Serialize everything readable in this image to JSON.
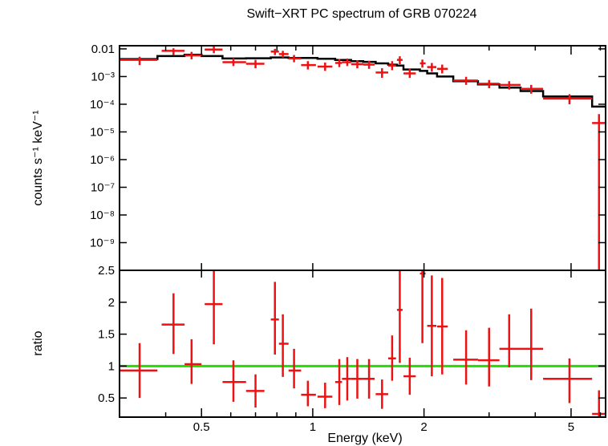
{
  "title": "Swift−XRT PC spectrum of GRB 070224",
  "chart_data": [
    {
      "type": "scatter",
      "panel": "spectrum",
      "ylabel": "counts s⁻¹ keV⁻¹",
      "xscale": "log",
      "yscale": "log",
      "xlim": [
        0.3,
        6.2
      ],
      "ylim": [
        1e-10,
        0.013
      ],
      "ytick_labels": [
        "0.01",
        "10⁻³",
        "10⁻⁴",
        "10⁻⁵",
        "10⁻⁶",
        "10⁻⁷",
        "10⁻⁸",
        "10⁻⁹"
      ],
      "ytick_values": [
        0.01,
        0.001,
        0.0001,
        1e-05,
        1e-06,
        1e-07,
        1e-08,
        1e-09
      ],
      "series": [
        {
          "name": "data",
          "color": "#ee1111",
          "points": [
            {
              "x": 0.34,
              "xlo": 0.3,
              "xhi": 0.38,
              "y": 0.004,
              "ylo": 0.0026,
              "yhi": 0.0052
            },
            {
              "x": 0.42,
              "xlo": 0.39,
              "xhi": 0.45,
              "y": 0.0085,
              "ylo": 0.006,
              "yhi": 0.0105
            },
            {
              "x": 0.47,
              "xlo": 0.45,
              "xhi": 0.5,
              "y": 0.0058,
              "ylo": 0.0042,
              "yhi": 0.0078
            },
            {
              "x": 0.54,
              "xlo": 0.51,
              "xhi": 0.57,
              "y": 0.0095,
              "ylo": 0.007,
              "yhi": 0.0125
            },
            {
              "x": 0.61,
              "xlo": 0.57,
              "xhi": 0.66,
              "y": 0.0033,
              "ylo": 0.0024,
              "yhi": 0.0046
            },
            {
              "x": 0.7,
              "xlo": 0.66,
              "xhi": 0.74,
              "y": 0.0029,
              "ylo": 0.002,
              "yhi": 0.004
            },
            {
              "x": 0.79,
              "xlo": 0.77,
              "xhi": 0.81,
              "y": 0.008,
              "ylo": 0.006,
              "yhi": 0.01
            },
            {
              "x": 0.83,
              "xlo": 0.81,
              "xhi": 0.86,
              "y": 0.0065,
              "ylo": 0.0048,
              "yhi": 0.0085
            },
            {
              "x": 0.89,
              "xlo": 0.86,
              "xhi": 0.93,
              "y": 0.0045,
              "ylo": 0.0033,
              "yhi": 0.006
            },
            {
              "x": 0.97,
              "xlo": 0.93,
              "xhi": 1.02,
              "y": 0.0026,
              "ylo": 0.0018,
              "yhi": 0.0036
            },
            {
              "x": 1.08,
              "xlo": 1.03,
              "xhi": 1.13,
              "y": 0.0023,
              "ylo": 0.0016,
              "yhi": 0.0032
            },
            {
              "x": 1.18,
              "xlo": 1.15,
              "xhi": 1.2,
              "y": 0.0031,
              "ylo": 0.0022,
              "yhi": 0.0043
            },
            {
              "x": 1.24,
              "xlo": 1.2,
              "xhi": 1.27,
              "y": 0.0033,
              "ylo": 0.0024,
              "yhi": 0.0045
            },
            {
              "x": 1.32,
              "xlo": 1.27,
              "xhi": 1.37,
              "y": 0.0028,
              "ylo": 0.002,
              "yhi": 0.0039
            },
            {
              "x": 1.42,
              "xlo": 1.37,
              "xhi": 1.47,
              "y": 0.0027,
              "ylo": 0.0019,
              "yhi": 0.0037
            },
            {
              "x": 1.54,
              "xlo": 1.48,
              "xhi": 1.6,
              "y": 0.0014,
              "ylo": 0.0009,
              "yhi": 0.002
            },
            {
              "x": 1.64,
              "xlo": 1.6,
              "xhi": 1.68,
              "y": 0.0025,
              "ylo": 0.0017,
              "yhi": 0.0036
            },
            {
              "x": 1.72,
              "xlo": 1.69,
              "xhi": 1.75,
              "y": 0.004,
              "ylo": 0.0028,
              "yhi": 0.0054
            },
            {
              "x": 1.83,
              "xlo": 1.76,
              "xhi": 1.9,
              "y": 0.0013,
              "ylo": 0.0009,
              "yhi": 0.0019
            },
            {
              "x": 1.98,
              "xlo": 1.95,
              "xhi": 2.02,
              "y": 0.003,
              "ylo": 0.0021,
              "yhi": 0.0041
            },
            {
              "x": 2.1,
              "xlo": 2.04,
              "xhi": 2.16,
              "y": 0.0022,
              "ylo": 0.0015,
              "yhi": 0.0031
            },
            {
              "x": 2.24,
              "xlo": 2.17,
              "xhi": 2.32,
              "y": 0.0019,
              "ylo": 0.0013,
              "yhi": 0.0027
            },
            {
              "x": 2.6,
              "xlo": 2.4,
              "xhi": 2.8,
              "y": 0.00072,
              "ylo": 0.0005,
              "yhi": 0.00098
            },
            {
              "x": 3.0,
              "xlo": 2.8,
              "xhi": 3.2,
              "y": 0.00055,
              "ylo": 0.00038,
              "yhi": 0.00075
            },
            {
              "x": 3.4,
              "xlo": 3.2,
              "xhi": 3.65,
              "y": 0.0005,
              "ylo": 0.00034,
              "yhi": 0.00068
            },
            {
              "x": 3.9,
              "xlo": 3.65,
              "xhi": 4.2,
              "y": 0.00036,
              "ylo": 0.00024,
              "yhi": 0.0005
            },
            {
              "x": 4.95,
              "xlo": 4.2,
              "xhi": 5.7,
              "y": 0.00016,
              "ylo": 0.0001,
              "yhi": 0.00023
            },
            {
              "x": 5.95,
              "xlo": 5.7,
              "xhi": 6.2,
              "y": 2.1e-05,
              "ylo": 1e-10,
              "yhi": 4.4e-05
            }
          ]
        },
        {
          "name": "model",
          "type": "step",
          "color": "#000000",
          "points": [
            {
              "xlo": 0.3,
              "xhi": 0.38,
              "y": 0.0043
            },
            {
              "xlo": 0.38,
              "xhi": 0.45,
              "y": 0.0055
            },
            {
              "xlo": 0.45,
              "xhi": 0.5,
              "y": 0.0061
            },
            {
              "xlo": 0.5,
              "xhi": 0.57,
              "y": 0.0055
            },
            {
              "xlo": 0.57,
              "xhi": 0.66,
              "y": 0.0045
            },
            {
              "xlo": 0.66,
              "xhi": 0.77,
              "y": 0.0046
            },
            {
              "xlo": 0.77,
              "xhi": 0.86,
              "y": 0.0049
            },
            {
              "xlo": 0.86,
              "xhi": 0.93,
              "y": 0.0047
            },
            {
              "xlo": 0.93,
              "xhi": 1.03,
              "y": 0.0047
            },
            {
              "xlo": 1.03,
              "xhi": 1.15,
              "y": 0.0044
            },
            {
              "xlo": 1.15,
              "xhi": 1.27,
              "y": 0.004
            },
            {
              "xlo": 1.27,
              "xhi": 1.37,
              "y": 0.0036
            },
            {
              "xlo": 1.37,
              "xhi": 1.48,
              "y": 0.0034
            },
            {
              "xlo": 1.48,
              "xhi": 1.6,
              "y": 0.003
            },
            {
              "xlo": 1.6,
              "xhi": 1.69,
              "y": 0.0027
            },
            {
              "xlo": 1.69,
              "xhi": 1.76,
              "y": 0.0025
            },
            {
              "xlo": 1.76,
              "xhi": 1.95,
              "y": 0.0018
            },
            {
              "xlo": 1.95,
              "xhi": 2.04,
              "y": 0.0016
            },
            {
              "xlo": 2.04,
              "xhi": 2.17,
              "y": 0.0013
            },
            {
              "xlo": 2.17,
              "xhi": 2.4,
              "y": 0.001
            },
            {
              "xlo": 2.4,
              "xhi": 2.8,
              "y": 0.00068
            },
            {
              "xlo": 2.8,
              "xhi": 3.2,
              "y": 0.00052
            },
            {
              "xlo": 3.2,
              "xhi": 3.65,
              "y": 0.0004
            },
            {
              "xlo": 3.65,
              "xhi": 4.2,
              "y": 0.0003
            },
            {
              "xlo": 4.2,
              "xhi": 5.7,
              "y": 0.00019
            },
            {
              "xlo": 5.7,
              "xhi": 6.2,
              "y": 8.2e-05
            }
          ]
        }
      ]
    },
    {
      "type": "scatter",
      "panel": "ratio",
      "ylabel": "ratio",
      "xlabel": "Energy (keV)",
      "xscale": "log",
      "yscale": "linear",
      "xlim": [
        0.3,
        6.2
      ],
      "ylim": [
        0.2,
        2.5
      ],
      "ytick_labels": [
        "2.5",
        "2",
        "1.5",
        "1",
        "0.5"
      ],
      "ytick_values": [
        2.5,
        2.0,
        1.5,
        1.0,
        0.5
      ],
      "xtick_labels": [
        "0.5",
        "1",
        "2",
        "5"
      ],
      "xtick_values": [
        0.5,
        1,
        2,
        5
      ],
      "reference_line": {
        "y": 1,
        "color": "#22dd00"
      },
      "series": [
        {
          "name": "ratio",
          "color": "#ee1111",
          "points": [
            {
              "x": 0.34,
              "xlo": 0.3,
              "xhi": 0.38,
              "y": 0.93,
              "ylo": 0.5,
              "yhi": 1.36
            },
            {
              "x": 0.42,
              "xlo": 0.39,
              "xhi": 0.45,
              "y": 1.65,
              "ylo": 1.19,
              "yhi": 2.14
            },
            {
              "x": 0.47,
              "xlo": 0.45,
              "xhi": 0.5,
              "y": 1.03,
              "ylo": 0.72,
              "yhi": 1.42
            },
            {
              "x": 0.54,
              "xlo": 0.51,
              "xhi": 0.57,
              "y": 1.97,
              "ylo": 1.34,
              "yhi": 2.5
            },
            {
              "x": 0.61,
              "xlo": 0.57,
              "xhi": 0.66,
              "y": 0.75,
              "ylo": 0.44,
              "yhi": 1.09
            },
            {
              "x": 0.7,
              "xlo": 0.66,
              "xhi": 0.74,
              "y": 0.61,
              "ylo": 0.35,
              "yhi": 0.87
            },
            {
              "x": 0.79,
              "xlo": 0.77,
              "xhi": 0.81,
              "y": 1.73,
              "ylo": 1.18,
              "yhi": 2.32
            },
            {
              "x": 0.83,
              "xlo": 0.81,
              "xhi": 0.86,
              "y": 1.35,
              "ylo": 0.83,
              "yhi": 1.81
            },
            {
              "x": 0.89,
              "xlo": 0.86,
              "xhi": 0.93,
              "y": 0.93,
              "ylo": 0.65,
              "yhi": 1.27
            },
            {
              "x": 0.97,
              "xlo": 0.93,
              "xhi": 1.02,
              "y": 0.55,
              "ylo": 0.37,
              "yhi": 0.77
            },
            {
              "x": 1.08,
              "xlo": 1.03,
              "xhi": 1.13,
              "y": 0.52,
              "ylo": 0.34,
              "yhi": 0.74
            },
            {
              "x": 1.18,
              "xlo": 1.15,
              "xhi": 1.2,
              "y": 0.75,
              "ylo": 0.39,
              "yhi": 1.11
            },
            {
              "x": 1.24,
              "xlo": 1.2,
              "xhi": 1.27,
              "y": 0.8,
              "ylo": 0.46,
              "yhi": 1.14
            },
            {
              "x": 1.32,
              "xlo": 1.27,
              "xhi": 1.37,
              "y": 0.8,
              "ylo": 0.49,
              "yhi": 1.11
            },
            {
              "x": 1.42,
              "xlo": 1.37,
              "xhi": 1.47,
              "y": 0.8,
              "ylo": 0.49,
              "yhi": 1.11
            },
            {
              "x": 1.54,
              "xlo": 1.48,
              "xhi": 1.6,
              "y": 0.56,
              "ylo": 0.33,
              "yhi": 0.79
            },
            {
              "x": 1.64,
              "xlo": 1.6,
              "xhi": 1.68,
              "y": 1.12,
              "ylo": 0.77,
              "yhi": 1.48
            },
            {
              "x": 1.72,
              "xlo": 1.69,
              "xhi": 1.75,
              "y": 1.88,
              "ylo": 1.05,
              "yhi": 2.5
            },
            {
              "x": 1.83,
              "xlo": 1.76,
              "xhi": 1.9,
              "y": 0.84,
              "ylo": 0.55,
              "yhi": 1.13
            },
            {
              "x": 1.98,
              "xlo": 1.95,
              "xhi": 2.02,
              "y": 2.45,
              "ylo": 1.36,
              "yhi": 2.5
            },
            {
              "x": 2.1,
              "xlo": 2.04,
              "xhi": 2.16,
              "y": 1.63,
              "ylo": 0.84,
              "yhi": 2.42
            },
            {
              "x": 2.24,
              "xlo": 2.17,
              "xhi": 2.32,
              "y": 1.62,
              "ylo": 0.87,
              "yhi": 2.38
            },
            {
              "x": 2.6,
              "xlo": 2.4,
              "xhi": 2.8,
              "y": 1.1,
              "ylo": 0.71,
              "yhi": 1.56
            },
            {
              "x": 3.0,
              "xlo": 2.8,
              "xhi": 3.2,
              "y": 1.09,
              "ylo": 0.68,
              "yhi": 1.6
            },
            {
              "x": 3.4,
              "xlo": 3.2,
              "xhi": 3.65,
              "y": 1.27,
              "ylo": 0.98,
              "yhi": 1.81
            },
            {
              "x": 3.9,
              "xlo": 3.65,
              "xhi": 4.2,
              "y": 1.27,
              "ylo": 0.78,
              "yhi": 1.9
            },
            {
              "x": 4.95,
              "xlo": 4.2,
              "xhi": 5.7,
              "y": 0.8,
              "ylo": 0.42,
              "yhi": 1.12
            },
            {
              "x": 5.95,
              "xlo": 5.7,
              "xhi": 6.2,
              "y": 0.25,
              "ylo": 0.2,
              "yhi": 0.62
            }
          ]
        }
      ]
    }
  ]
}
